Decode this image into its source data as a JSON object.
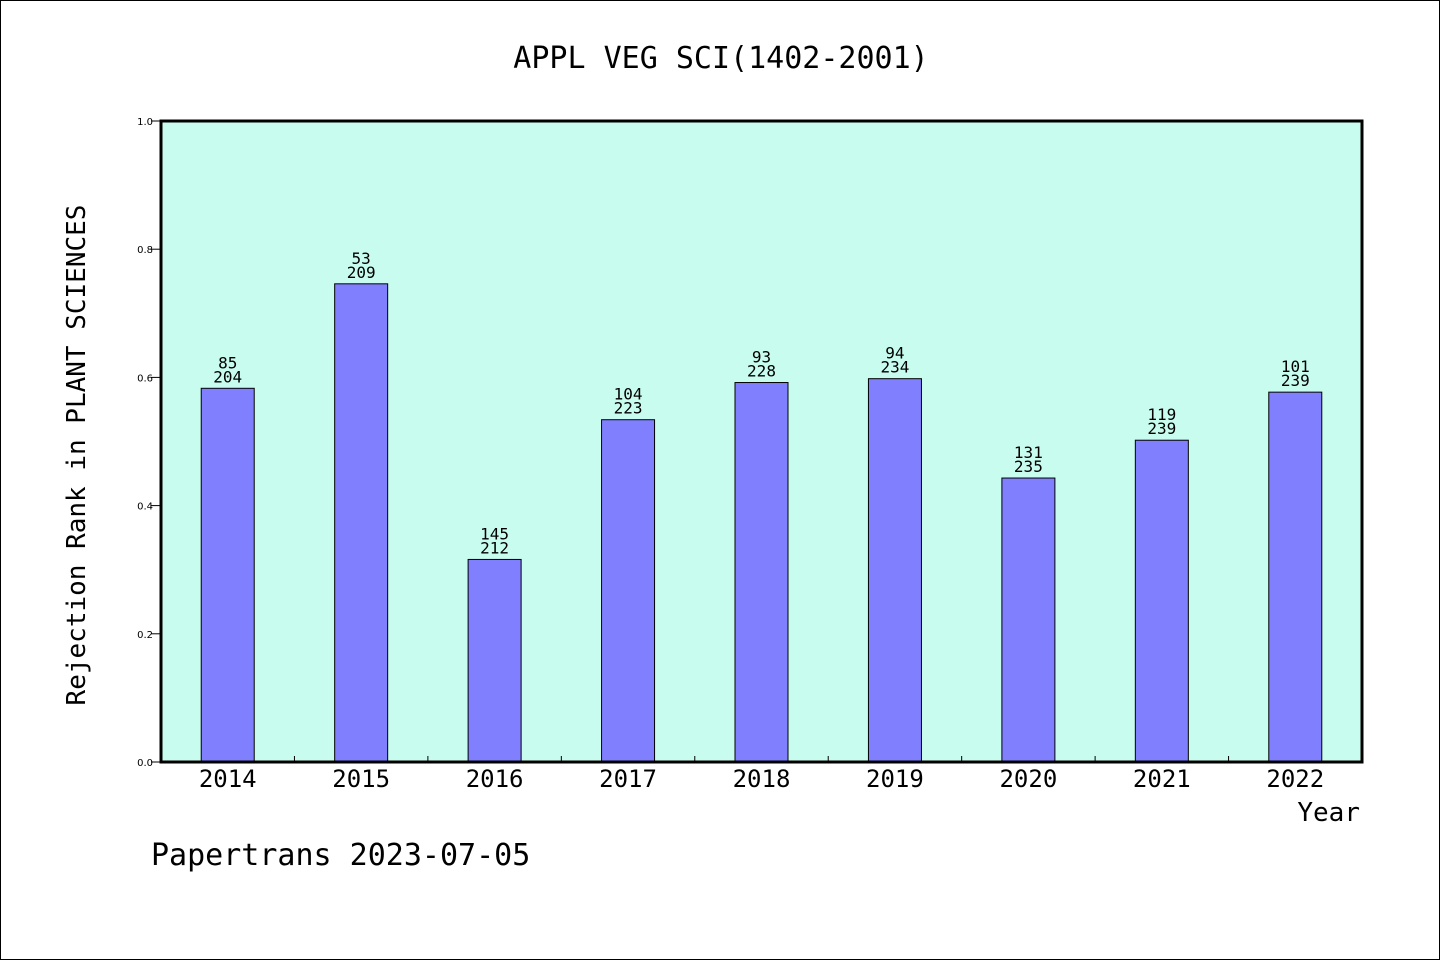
{
  "chart_data": {
    "type": "bar",
    "title": "APPL VEG SCI(1402-2001)",
    "xlabel": "Year",
    "ylabel": "Rejection Rank in PLANT SCIENCES",
    "ylim": [
      0,
      1.0
    ],
    "yticks": [
      "0.0",
      "0.2",
      "0.4",
      "0.6",
      "0.8",
      "1.0"
    ],
    "categories": [
      "2014",
      "2015",
      "2016",
      "2017",
      "2018",
      "2019",
      "2020",
      "2021",
      "2022"
    ],
    "values": [
      0.583,
      0.746,
      0.316,
      0.534,
      0.592,
      0.598,
      0.443,
      0.502,
      0.577
    ],
    "bar_labels_top": [
      "85",
      "53",
      "145",
      "104",
      "93",
      "94",
      "131",
      "119",
      "101"
    ],
    "bar_labels_bottom": [
      "204",
      "209",
      "212",
      "223",
      "228",
      "234",
      "235",
      "239",
      "239"
    ],
    "grid": false,
    "colors": {
      "plot_background": "#c8fcee",
      "bar_fill": "#8080ff",
      "bar_stroke": "#000000"
    }
  },
  "footer": "Papertrans 2023-07-05"
}
